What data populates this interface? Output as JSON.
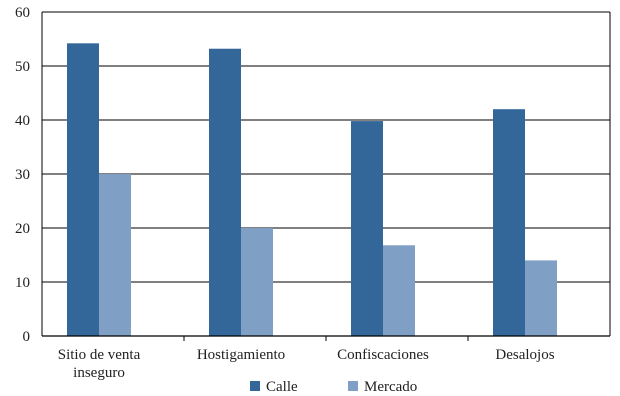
{
  "chart_data": {
    "type": "bar",
    "categories": [
      [
        "Sitio de venta",
        "inseguro"
      ],
      [
        "Hostigamiento"
      ],
      [
        "Confiscaciones"
      ],
      [
        "Desalojos"
      ]
    ],
    "series": [
      {
        "name": "Calle",
        "values": [
          54.2,
          53.2,
          39.8,
          42.0
        ],
        "color": "#336699"
      },
      {
        "name": "Mercado",
        "values": [
          30.0,
          20.0,
          16.8,
          14.0
        ],
        "color": "#7f9fc4"
      }
    ],
    "ylim": [
      0,
      60
    ],
    "yticks": [
      0,
      10,
      20,
      30,
      40,
      50,
      60
    ],
    "grid": true,
    "legend": "bottom-center",
    "title": "",
    "xlabel": "",
    "ylabel": ""
  }
}
